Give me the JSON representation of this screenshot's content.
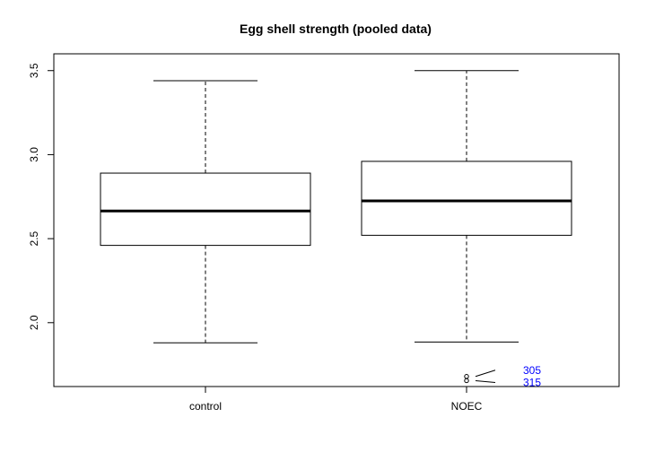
{
  "chart_data": {
    "type": "boxplot",
    "title": "Egg shell strength (pooled data)",
    "xlabel": "",
    "ylabel": "",
    "ylim": [
      1.62,
      3.6
    ],
    "y_ticks": [
      2.0,
      2.5,
      3.0,
      3.5
    ],
    "y_tick_labels": [
      "2.0",
      "2.5",
      "3.0",
      "3.5"
    ],
    "categories": [
      "control",
      "NOEC"
    ],
    "boxes": [
      {
        "label": "control",
        "whisker_low": 1.88,
        "q1": 2.46,
        "median": 2.665,
        "q3": 2.89,
        "whisker_high": 3.44,
        "outliers": []
      },
      {
        "label": "NOEC",
        "whisker_low": 1.885,
        "q1": 2.52,
        "median": 2.725,
        "q3": 2.96,
        "whisker_high": 3.5,
        "outliers": [
          {
            "value": 1.68,
            "label": "305"
          },
          {
            "value": 1.655,
            "label": "315"
          }
        ]
      }
    ],
    "grid": false,
    "colors": {
      "box": "#000000",
      "outlier_label": "#0000ff"
    }
  }
}
